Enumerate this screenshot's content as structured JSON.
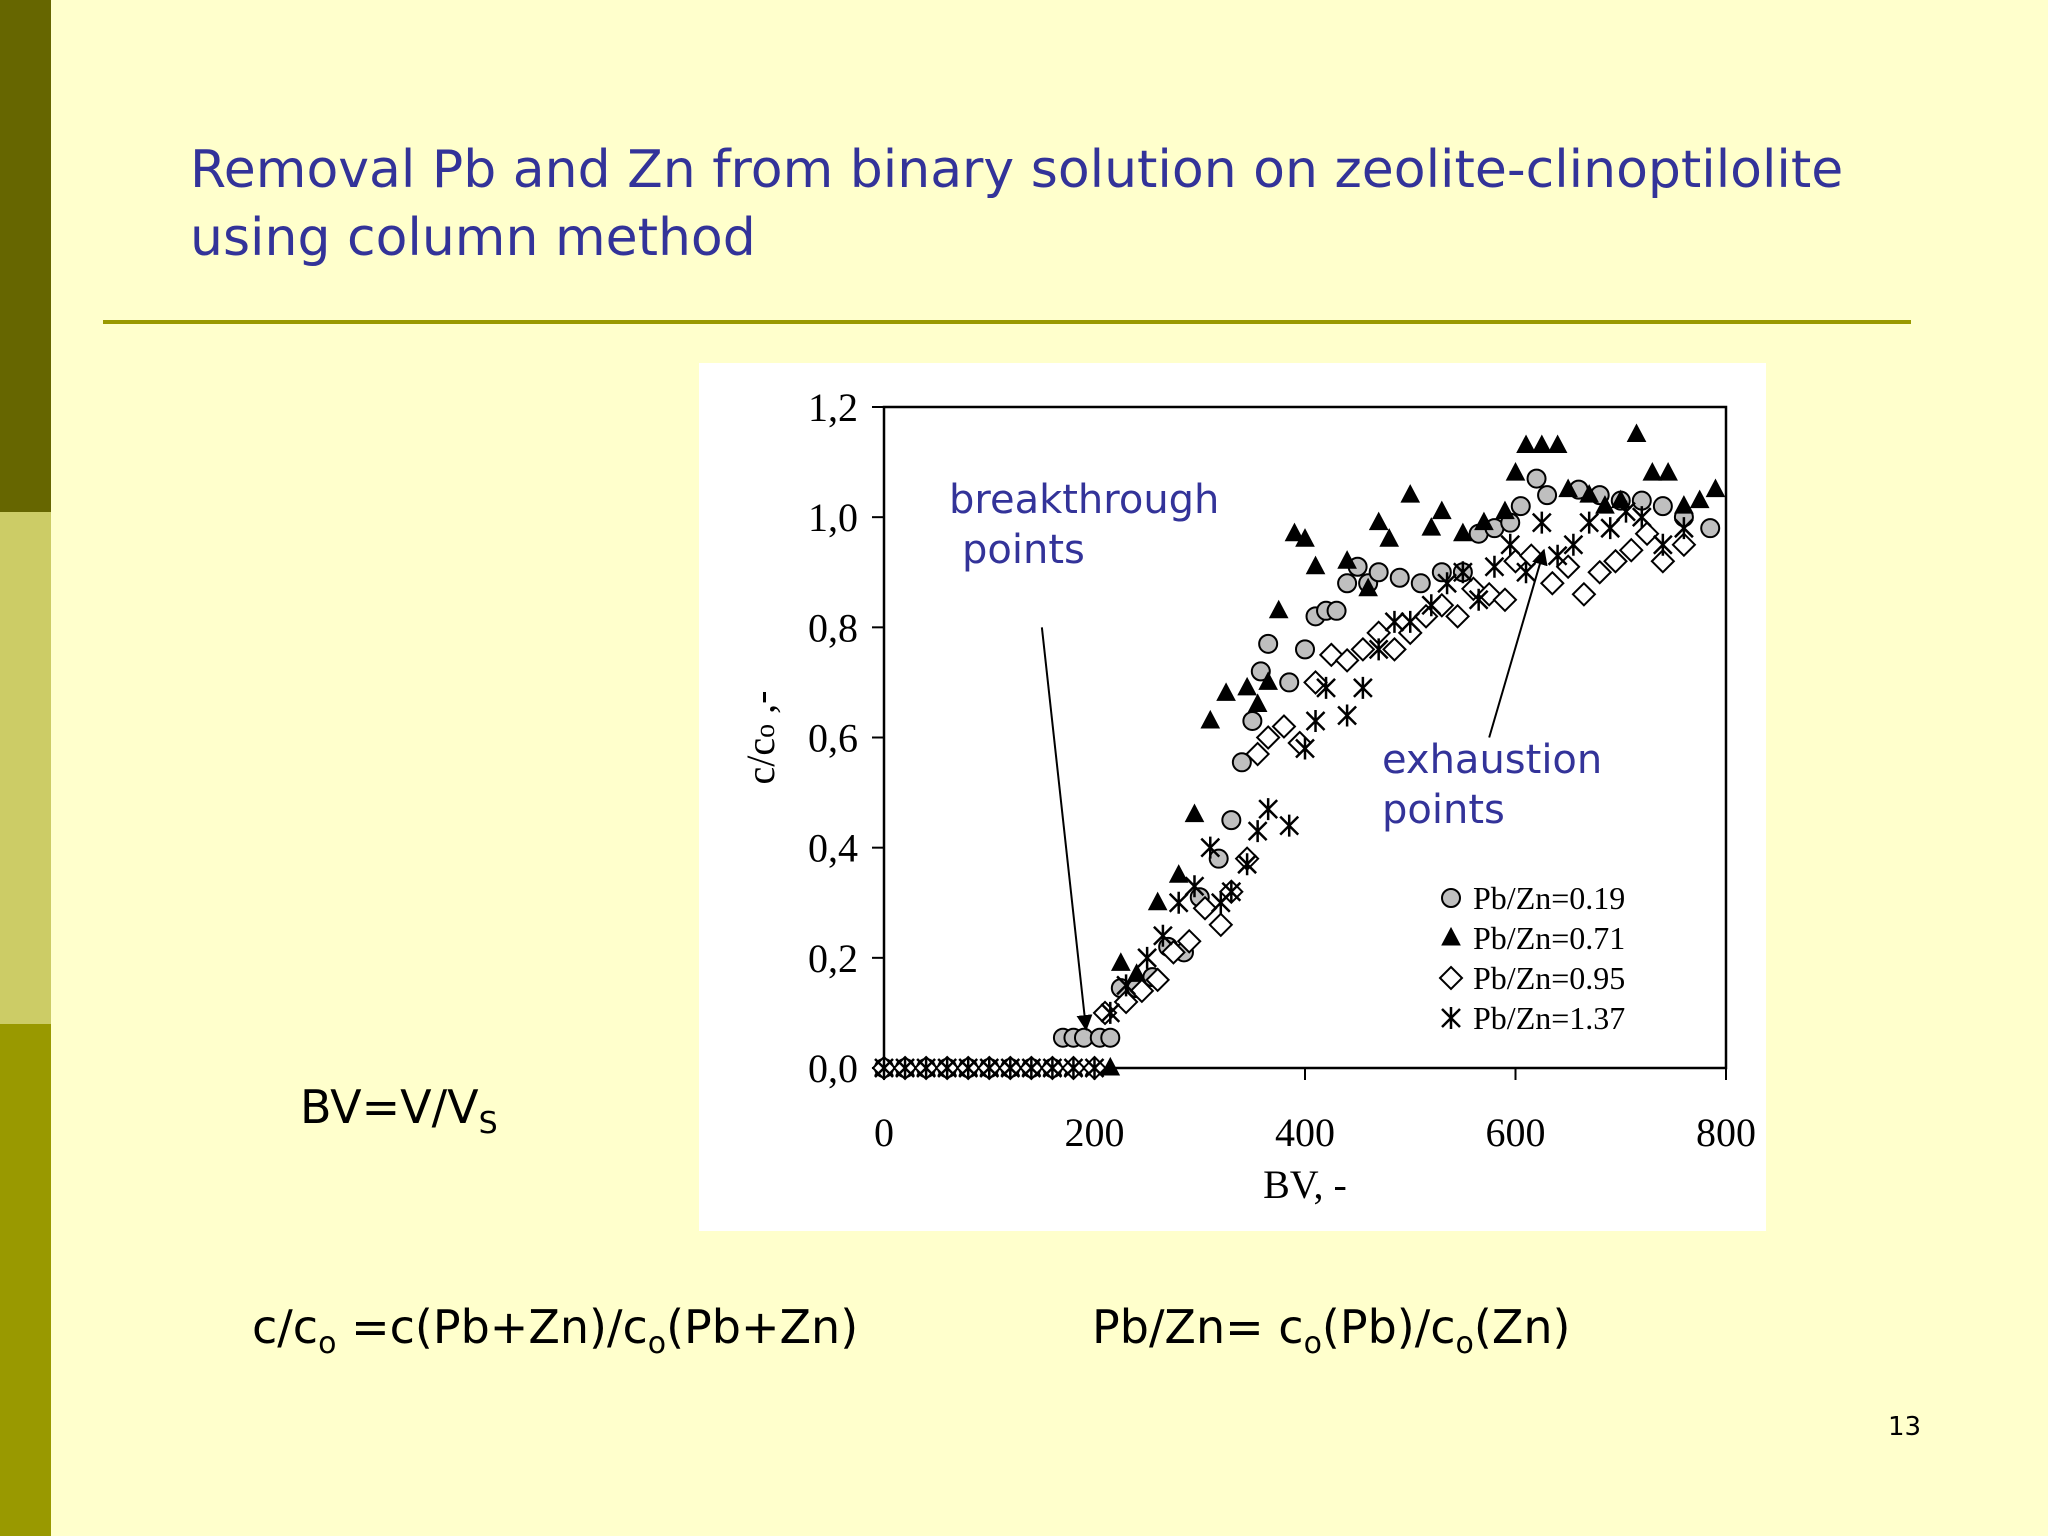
{
  "slide": {
    "title_line1": "Removal Pb and Zn from binary solution on zeolite-clinoptilolite",
    "title_line2": "using column method",
    "page_number": "13",
    "formula_bv": {
      "lhs": "BV=V/V",
      "sub": "S"
    },
    "formula_ratio": {
      "p1": "c/c",
      "s1": "o",
      "p2": " =c(Pb+Zn)/c",
      "s2": "o",
      "p3": "(Pb+Zn)"
    },
    "formula_pbzn": {
      "p1": "Pb/Zn= c",
      "s1": "o",
      "p2": "(Pb)/c",
      "s2": "o",
      "p3": "(Zn)"
    },
    "colors": {
      "band_dark": "#666600",
      "band_light": "#cccc66",
      "band_mid": "#999900",
      "title": "#333399",
      "background": "#ffffcc"
    }
  },
  "chart_data": {
    "type": "scatter",
    "xlabel": "BV, -",
    "ylabel_main": "c/c",
    "ylabel_sub": "o",
    "ylabel_tail": " ,-",
    "xlim": [
      0,
      800
    ],
    "ylim": [
      0,
      1.2
    ],
    "x_ticks": [
      0,
      200,
      400,
      600,
      800
    ],
    "x_tick_labels": [
      "0",
      "200",
      "400",
      "600",
      "800"
    ],
    "y_ticks": [
      0,
      0.2,
      0.4,
      0.6,
      0.8,
      1.0,
      1.2
    ],
    "y_tick_labels": [
      "0,0",
      "0,2",
      "0,4",
      "0,6",
      "0,8",
      "1,0",
      "1,2"
    ],
    "grid": false,
    "legend_position": "bottom-right",
    "annotations": {
      "breakthrough": {
        "line1": "breakthrough",
        "line2": "points",
        "arrow_from": [
          150,
          0.8
        ],
        "arrow_to": [
          192,
          0.07
        ]
      },
      "exhaustion": {
        "line1": "exhaustion",
        "line2": "points",
        "arrow_from": [
          575,
          0.6
        ],
        "arrow_to": [
          627,
          0.94
        ]
      }
    },
    "series": [
      {
        "name": "Pb/Zn=0.19",
        "marker": "circle",
        "points": [
          [
            0,
            0
          ],
          [
            20,
            0
          ],
          [
            40,
            0
          ],
          [
            60,
            0
          ],
          [
            80,
            0
          ],
          [
            100,
            0
          ],
          [
            120,
            0
          ],
          [
            140,
            0
          ],
          [
            160,
            0
          ],
          [
            170,
            0.055
          ],
          [
            180,
            0.055
          ],
          [
            190,
            0.055
          ],
          [
            205,
            0.055
          ],
          [
            215,
            0.055
          ],
          [
            225,
            0.145
          ],
          [
            240,
            0.145
          ],
          [
            255,
            0.165
          ],
          [
            270,
            0.22
          ],
          [
            285,
            0.21
          ],
          [
            300,
            0.31
          ],
          [
            318,
            0.38
          ],
          [
            330,
            0.45
          ],
          [
            340,
            0.555
          ],
          [
            350,
            0.63
          ],
          [
            358,
            0.72
          ],
          [
            365,
            0.77
          ],
          [
            385,
            0.7
          ],
          [
            400,
            0.76
          ],
          [
            410,
            0.82
          ],
          [
            420,
            0.83
          ],
          [
            430,
            0.83
          ],
          [
            440,
            0.88
          ],
          [
            450,
            0.91
          ],
          [
            460,
            0.88
          ],
          [
            470,
            0.9
          ],
          [
            490,
            0.89
          ],
          [
            510,
            0.88
          ],
          [
            530,
            0.9
          ],
          [
            550,
            0.9
          ],
          [
            565,
            0.97
          ],
          [
            580,
            0.98
          ],
          [
            595,
            0.99
          ],
          [
            605,
            1.02
          ],
          [
            620,
            1.07
          ],
          [
            630,
            1.04
          ],
          [
            660,
            1.05
          ],
          [
            680,
            1.04
          ],
          [
            700,
            1.03
          ],
          [
            720,
            1.03
          ],
          [
            740,
            1.02
          ],
          [
            760,
            1.0
          ],
          [
            785,
            0.98
          ]
        ]
      },
      {
        "name": "Pb/Zn=0.71",
        "marker": "triangle",
        "points": [
          [
            0,
            0
          ],
          [
            20,
            0
          ],
          [
            40,
            0
          ],
          [
            60,
            0
          ],
          [
            80,
            0
          ],
          [
            100,
            0
          ],
          [
            120,
            0
          ],
          [
            140,
            0
          ],
          [
            160,
            0
          ],
          [
            180,
            0
          ],
          [
            200,
            0
          ],
          [
            215,
            0
          ],
          [
            225,
            0.19
          ],
          [
            240,
            0.17
          ],
          [
            260,
            0.3
          ],
          [
            280,
            0.35
          ],
          [
            295,
            0.46
          ],
          [
            310,
            0.63
          ],
          [
            325,
            0.68
          ],
          [
            345,
            0.69
          ],
          [
            355,
            0.66
          ],
          [
            365,
            0.7
          ],
          [
            375,
            0.83
          ],
          [
            390,
            0.97
          ],
          [
            400,
            0.96
          ],
          [
            410,
            0.91
          ],
          [
            440,
            0.92
          ],
          [
            460,
            0.87
          ],
          [
            470,
            0.99
          ],
          [
            480,
            0.96
          ],
          [
            500,
            1.04
          ],
          [
            520,
            0.98
          ],
          [
            530,
            1.01
          ],
          [
            550,
            0.97
          ],
          [
            570,
            0.99
          ],
          [
            590,
            1.01
          ],
          [
            600,
            1.08
          ],
          [
            610,
            1.13
          ],
          [
            625,
            1.13
          ],
          [
            640,
            1.13
          ],
          [
            650,
            1.05
          ],
          [
            670,
            1.04
          ],
          [
            685,
            1.02
          ],
          [
            700,
            1.03
          ],
          [
            715,
            1.15
          ],
          [
            730,
            1.08
          ],
          [
            745,
            1.08
          ],
          [
            760,
            1.02
          ],
          [
            775,
            1.03
          ],
          [
            790,
            1.05
          ]
        ]
      },
      {
        "name": "Pb/Zn=0.95",
        "marker": "diamond",
        "points": [
          [
            0,
            0
          ],
          [
            20,
            0
          ],
          [
            40,
            0
          ],
          [
            60,
            0
          ],
          [
            80,
            0
          ],
          [
            100,
            0
          ],
          [
            120,
            0
          ],
          [
            140,
            0
          ],
          [
            160,
            0
          ],
          [
            180,
            0
          ],
          [
            200,
            0
          ],
          [
            210,
            0.1
          ],
          [
            230,
            0.12
          ],
          [
            245,
            0.14
          ],
          [
            260,
            0.16
          ],
          [
            275,
            0.21
          ],
          [
            290,
            0.23
          ],
          [
            305,
            0.29
          ],
          [
            320,
            0.26
          ],
          [
            330,
            0.32
          ],
          [
            345,
            0.38
          ],
          [
            355,
            0.57
          ],
          [
            365,
            0.6
          ],
          [
            380,
            0.62
          ],
          [
            395,
            0.59
          ],
          [
            410,
            0.7
          ],
          [
            425,
            0.75
          ],
          [
            440,
            0.74
          ],
          [
            455,
            0.76
          ],
          [
            470,
            0.79
          ],
          [
            485,
            0.76
          ],
          [
            500,
            0.79
          ],
          [
            515,
            0.82
          ],
          [
            530,
            0.84
          ],
          [
            545,
            0.82
          ],
          [
            560,
            0.87
          ],
          [
            575,
            0.86
          ],
          [
            590,
            0.85
          ],
          [
            600,
            0.92
          ],
          [
            615,
            0.93
          ],
          [
            635,
            0.88
          ],
          [
            650,
            0.91
          ],
          [
            665,
            0.86
          ],
          [
            680,
            0.9
          ],
          [
            695,
            0.92
          ],
          [
            710,
            0.94
          ],
          [
            725,
            0.97
          ],
          [
            740,
            0.92
          ],
          [
            760,
            0.95
          ]
        ]
      },
      {
        "name": "Pb/Zn=1.37",
        "marker": "star",
        "points": [
          [
            0,
            0
          ],
          [
            20,
            0
          ],
          [
            40,
            0
          ],
          [
            60,
            0
          ],
          [
            80,
            0
          ],
          [
            100,
            0
          ],
          [
            120,
            0
          ],
          [
            140,
            0
          ],
          [
            160,
            0
          ],
          [
            180,
            0
          ],
          [
            200,
            0
          ],
          [
            215,
            0.1
          ],
          [
            230,
            0.15
          ],
          [
            250,
            0.2
          ],
          [
            265,
            0.24
          ],
          [
            280,
            0.3
          ],
          [
            295,
            0.33
          ],
          [
            310,
            0.4
          ],
          [
            320,
            0.3
          ],
          [
            330,
            0.32
          ],
          [
            345,
            0.37
          ],
          [
            355,
            0.43
          ],
          [
            365,
            0.47
          ],
          [
            385,
            0.44
          ],
          [
            400,
            0.58
          ],
          [
            410,
            0.63
          ],
          [
            420,
            0.69
          ],
          [
            440,
            0.64
          ],
          [
            455,
            0.69
          ],
          [
            470,
            0.76
          ],
          [
            485,
            0.81
          ],
          [
            500,
            0.81
          ],
          [
            520,
            0.84
          ],
          [
            535,
            0.88
          ],
          [
            550,
            0.9
          ],
          [
            565,
            0.85
          ],
          [
            580,
            0.91
          ],
          [
            595,
            0.95
          ],
          [
            610,
            0.9
          ],
          [
            625,
            0.99
          ],
          [
            640,
            0.93
          ],
          [
            655,
            0.95
          ],
          [
            670,
            0.99
          ],
          [
            690,
            0.98
          ],
          [
            705,
            1.01
          ],
          [
            720,
            1.0
          ],
          [
            740,
            0.95
          ],
          [
            760,
            0.98
          ]
        ]
      }
    ]
  }
}
